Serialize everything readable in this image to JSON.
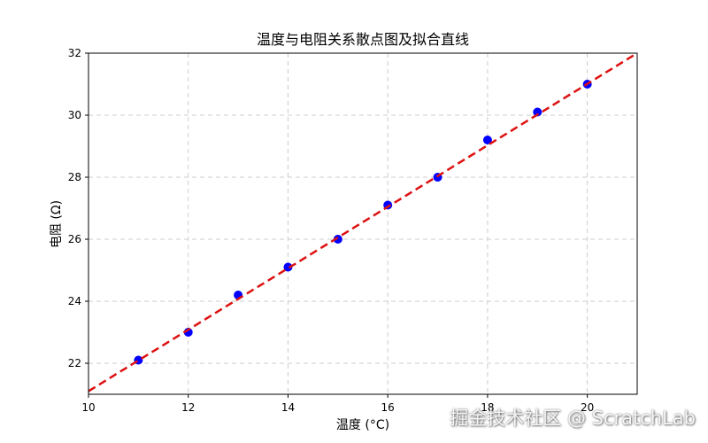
{
  "chart_data": {
    "type": "scatter",
    "title": "温度与电阻关系散点图及拟合直线",
    "xlabel": "温度 (°C)",
    "ylabel": "电阻 (Ω)",
    "xlim": [
      10,
      21
    ],
    "ylim": [
      21,
      32
    ],
    "xticks": [
      10,
      12,
      14,
      16,
      18,
      20
    ],
    "yticks": [
      22,
      24,
      26,
      28,
      30,
      32
    ],
    "grid": true,
    "series": [
      {
        "kind": "scatter",
        "color": "#0000ff",
        "x": [
          11,
          12,
          13,
          14,
          15,
          16,
          17,
          18,
          19,
          20
        ],
        "y": [
          22.1,
          23.0,
          24.2,
          25.1,
          26.0,
          27.1,
          28.0,
          29.2,
          30.1,
          31.0
        ]
      },
      {
        "kind": "line",
        "style": "dashed",
        "color": "#dd1111",
        "x": [
          10,
          21
        ],
        "y": [
          21.1,
          32.0
        ]
      }
    ]
  },
  "watermark": "掘金技术社区 @ ScratchLab"
}
